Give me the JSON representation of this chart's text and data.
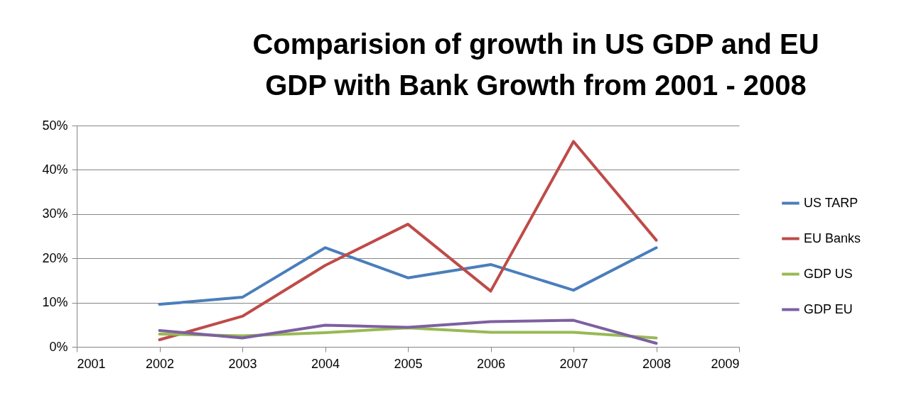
{
  "chart_data": {
    "type": "line",
    "title": "Comparision of growth in US GDP and EU GDP with Bank Growth from 2001 - 2008",
    "x": [
      2002,
      2003,
      2004,
      2005,
      2006,
      2007,
      2008
    ],
    "series": [
      {
        "name": "US TARP",
        "color": "#4a7ebb",
        "values": [
          9.6,
          11.2,
          22.4,
          15.6,
          18.6,
          12.8,
          22.4
        ]
      },
      {
        "name": "EU Banks",
        "color": "#be4b48",
        "values": [
          1.6,
          6.9,
          18.4,
          27.7,
          12.6,
          46.4,
          24.1
        ]
      },
      {
        "name": "GDP US",
        "color": "#98b954",
        "values": [
          2.9,
          2.5,
          3.2,
          4.3,
          3.3,
          3.3,
          2.0
        ]
      },
      {
        "name": "GDP EU",
        "color": "#7d60a0",
        "values": [
          3.7,
          2.0,
          4.9,
          4.4,
          5.7,
          6.0,
          0.8
        ]
      }
    ],
    "xlim": [
      2001,
      2009
    ],
    "xticks": [
      2001,
      2002,
      2003,
      2004,
      2005,
      2006,
      2007,
      2008,
      2009
    ],
    "ylim": [
      0,
      50
    ],
    "yticks": [
      {
        "value": 0,
        "label": "0%"
      },
      {
        "value": 10,
        "label": "10%"
      },
      {
        "value": 20,
        "label": "20%"
      },
      {
        "value": 30,
        "label": "30%"
      },
      {
        "value": 40,
        "label": "40%"
      },
      {
        "value": 50,
        "label": "50%"
      }
    ],
    "grid": "y",
    "legend": "right",
    "line_style": "solid",
    "marker": "none"
  }
}
